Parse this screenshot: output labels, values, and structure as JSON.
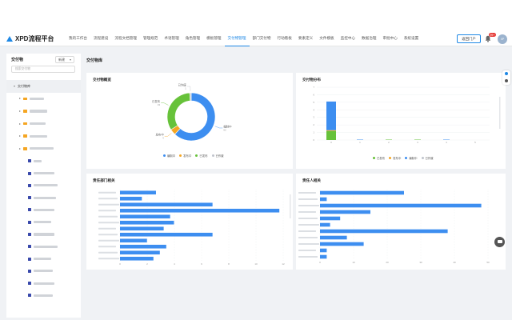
{
  "app": {
    "title": "XPD流程平台"
  },
  "nav": {
    "items": [
      "我的工作台",
      "流程建设",
      "流程文档管理",
      "管理规范",
      "术语管理",
      "角色管理",
      "模板管理",
      "交付物管理",
      "部门交付物",
      "行动看板",
      "要素定义",
      "文件模板",
      "监控中心",
      "数据治理",
      "审批中心",
      "系统设置"
    ],
    "active_index": 7
  },
  "header": {
    "portal_label": "返回门户",
    "badge_count": "99+",
    "avatar_text": "XP"
  },
  "sidebar": {
    "title": "交付物",
    "new_label": "新建",
    "search_placeholder": "搜索交付物",
    "root_label": "交付物库"
  },
  "main": {
    "title": "交付物库"
  },
  "panels": {
    "overview": {
      "title": "交付物概览",
      "legend": [
        "编制中",
        "发布中",
        "已发布",
        "已作废"
      ]
    },
    "distribution": {
      "title": "交付物分布",
      "legend": [
        "已发布",
        "发布中",
        "编制中",
        "已作废"
      ],
      "yticks": [
        "7",
        "6",
        "5",
        "4",
        "3",
        "2",
        "1",
        "0"
      ],
      "xticks": [
        "0",
        "1",
        "2",
        "3",
        "4",
        "5"
      ]
    },
    "dept": {
      "title": "责任部门相关",
      "xticks": [
        "0",
        "2",
        "4",
        "6",
        "8",
        "10",
        "12"
      ]
    },
    "person": {
      "title": "责任人相关",
      "xticks": [
        "0",
        "10",
        "20",
        "30",
        "40",
        "50"
      ]
    }
  },
  "colors": {
    "blue": "#3d8ef0",
    "green": "#67c23a",
    "orange": "#f5a623",
    "gray": "#c0c4cc",
    "accent": "#1e88e5"
  },
  "chart_data": [
    {
      "type": "pie",
      "title": "交付物概览",
      "categories": [
        "编制中",
        "发布中",
        "已发布",
        "已作废"
      ],
      "values": [
        62,
        4,
        33,
        1
      ],
      "colors": [
        "#3d8ef0",
        "#f5a623",
        "#67c23a",
        "#c0c4cc"
      ],
      "labels": [
        "编制中",
        "发布中",
        "已发布",
        "已作废"
      ]
    },
    {
      "type": "bar",
      "title": "交付物分布",
      "categories": [
        "0",
        "1",
        "2",
        "3",
        "4",
        "5"
      ],
      "series": [
        {
          "name": "已发布",
          "values": [
            1.2,
            0,
            0.05,
            0.05,
            0,
            0
          ],
          "color": "#67c23a"
        },
        {
          "name": "发布中",
          "values": [
            0.1,
            0,
            0,
            0,
            0,
            0
          ],
          "color": "#f5a623"
        },
        {
          "name": "编制中",
          "values": [
            3.8,
            0.05,
            0,
            0,
            0.05,
            0
          ],
          "color": "#3d8ef0"
        },
        {
          "name": "已作废",
          "values": [
            0,
            0,
            0,
            0,
            0,
            0
          ],
          "color": "#c0c4cc"
        }
      ],
      "ylim": [
        0,
        7
      ]
    },
    {
      "type": "bar",
      "orientation": "horizontal",
      "title": "责任部门相关",
      "values": [
        2.8,
        1.7,
        7.2,
        12.4,
        3.9,
        4.2,
        3.4,
        7.2,
        2.1,
        3.6,
        3.1,
        2.6
      ],
      "xlim": [
        0,
        12.7
      ]
    },
    {
      "type": "bar",
      "orientation": "horizontal",
      "title": "责任人相关",
      "values": [
        25,
        2,
        48,
        15,
        6,
        3,
        38,
        8,
        13,
        2,
        2
      ],
      "xlim": [
        0,
        50
      ]
    }
  ]
}
